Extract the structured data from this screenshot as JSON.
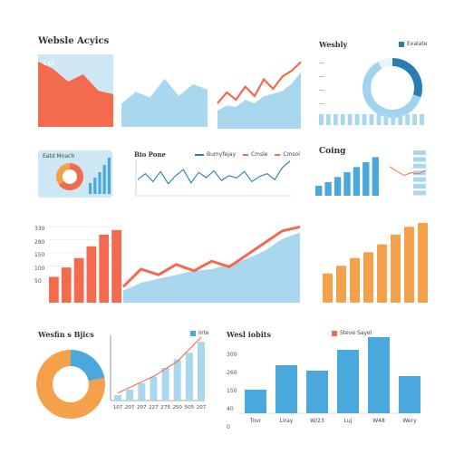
{
  "header": {
    "title": "Websle Acyics"
  },
  "top_right": {
    "title": "Wesbly",
    "legend_label": "Exalate"
  },
  "top_left_panel": {
    "label": "Let"
  },
  "mini_panel": {
    "label": "Eatd Mnach"
  },
  "line_panel": {
    "title": "Bio Pone",
    "legend": [
      "Bumyfejay",
      "Cmsle",
      "Cmsol"
    ]
  },
  "coing": {
    "title": "Coing"
  },
  "bottom_left": {
    "title": "Wesfin s Bjics",
    "legend_label": "Inte"
  },
  "bottom_right": {
    "title": "Wesl iobits",
    "legend_label": "Steve Sayel"
  },
  "colors": {
    "coral": "#f26b4f",
    "orange": "#f5a04a",
    "blue": "#4aa8dd",
    "dark_blue": "#2a7db4",
    "light_blue": "#a9d8ee"
  },
  "chart_data": [
    {
      "type": "area",
      "label": "Let",
      "x": [
        0,
        1,
        2,
        3,
        4,
        5
      ],
      "series": [
        {
          "values": [
            72,
            64,
            50,
            58,
            40,
            36
          ]
        }
      ]
    },
    {
      "type": "area",
      "x": [
        0,
        1,
        2,
        3,
        4,
        5,
        6
      ],
      "series": [
        {
          "values": [
            30,
            45,
            38,
            62,
            40,
            55,
            48
          ]
        }
      ]
    },
    {
      "type": "area",
      "x": [
        0,
        1,
        2,
        3,
        4,
        5,
        6,
        7,
        8,
        9
      ],
      "series": [
        {
          "values": [
            35,
            50,
            40,
            58,
            45,
            68,
            55,
            72,
            80,
            92
          ]
        },
        {
          "values": [
            25,
            32,
            30,
            40,
            35,
            45,
            48,
            52,
            62,
            78
          ]
        }
      ]
    },
    {
      "type": "pie",
      "title": "Wesbly",
      "slices": [
        {
          "value": 30,
          "color": "#2a7db4"
        },
        {
          "value": 62,
          "color": "#9fd4ec"
        },
        {
          "value": 8,
          "color": "#e6f3fa"
        }
      ]
    },
    {
      "type": "bar",
      "values": [
        4,
        4,
        4,
        4,
        4,
        4,
        4,
        4,
        4,
        4,
        4,
        4,
        4,
        4,
        4
      ]
    },
    {
      "type": "pie",
      "label": "Eatd Mnach",
      "slices": [
        {
          "value": 65,
          "color": "#f26b4f"
        },
        {
          "value": 35,
          "color": "#f5a04a"
        }
      ]
    },
    {
      "type": "bar",
      "values": [
        6,
        9,
        12,
        16,
        20
      ]
    },
    {
      "type": "line",
      "title": "Bio Pone",
      "series": [
        {
          "name": "Bumyfejay",
          "values": [
            40,
            55,
            35,
            60,
            30,
            50,
            65,
            32,
            58,
            45,
            62,
            38,
            50,
            44,
            60,
            35,
            48,
            55,
            40,
            70,
            86
          ]
        }
      ]
    },
    {
      "type": "bar",
      "title": "Coing",
      "values": [
        8,
        11,
        15,
        19,
        23,
        27,
        31
      ]
    },
    {
      "type": "bar",
      "values": [
        5,
        5,
        5,
        5,
        5,
        5,
        5
      ]
    },
    {
      "type": "line",
      "values": [
        35,
        28,
        22,
        26,
        24,
        30
      ]
    },
    {
      "type": "bar",
      "yticks": [
        "330",
        "280",
        "150",
        "100",
        "50"
      ],
      "values": [
        22,
        30,
        38,
        48,
        58,
        62
      ]
    },
    {
      "type": "area",
      "series": [
        {
          "values": [
            20,
            42,
            35,
            48,
            40,
            52,
            45,
            60,
            75,
            90,
            95
          ]
        },
        {
          "values": [
            15,
            25,
            30,
            35,
            40,
            42,
            48,
            55,
            65,
            80,
            88
          ]
        }
      ]
    },
    {
      "type": "bar",
      "values": [
        30,
        38,
        46,
        52,
        60,
        70,
        78,
        82
      ]
    },
    {
      "type": "pie",
      "title": "Wesfin s Bjics",
      "slices": [
        {
          "value": 22,
          "color": "#4aa8dd"
        },
        {
          "value": 78,
          "color": "#f5a04a"
        }
      ]
    },
    {
      "type": "bar",
      "categories": [
        "107",
        "207",
        "207",
        "227",
        "275",
        "250",
        "505",
        "207"
      ],
      "values": [
        5,
        10,
        16,
        22,
        30,
        38,
        44,
        54
      ],
      "line_values": [
        8,
        14,
        20,
        26,
        34,
        42,
        55,
        68
      ]
    },
    {
      "type": "bar",
      "title": "Wesl iobits",
      "categories": [
        "Tovr",
        "Liray",
        "W/23",
        "Luj",
        "W48",
        "Wery"
      ],
      "yticks": [
        "300",
        "260",
        "150",
        "40",
        "0"
      ],
      "values": [
        130,
        265,
        235,
        350,
        420,
        205
      ]
    }
  ]
}
